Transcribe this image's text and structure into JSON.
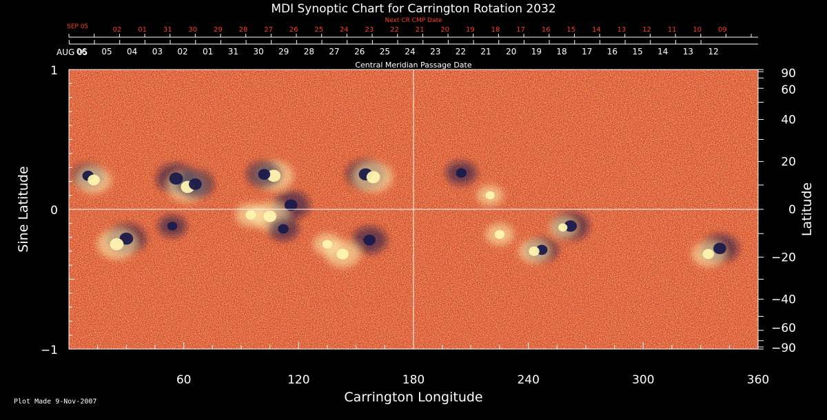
{
  "chart_data": {
    "type": "heatmap",
    "title": "MDI Synoptic Chart for Carrington Rotation 2032",
    "xlabel": "Carrington Longitude",
    "ylabel_left": "Sine Latitude",
    "ylabel_right": "Latitude",
    "xlim": [
      0,
      360
    ],
    "ylim": [
      -1,
      1
    ],
    "x_ticks": [
      60,
      120,
      180,
      240,
      300,
      360
    ],
    "y_ticks_left": [
      {
        "value": 1,
        "label": "1"
      },
      {
        "value": 0,
        "label": "0"
      },
      {
        "value": -1,
        "label": "−1"
      }
    ],
    "y_ticks_right": [
      {
        "deg": 90,
        "label": "90"
      },
      {
        "deg": 60,
        "label": "60"
      },
      {
        "deg": 40,
        "label": "40"
      },
      {
        "deg": 20,
        "label": "20"
      },
      {
        "deg": 0,
        "label": "0"
      },
      {
        "deg": -20,
        "label": "−20"
      },
      {
        "deg": -40,
        "label": "−40"
      },
      {
        "deg": -60,
        "label": "−60"
      },
      {
        "deg": -90,
        "label": "−90"
      }
    ],
    "top_axis_label": "Central Meridian Passage Date",
    "top_axis_start": "AUG 05",
    "top_axis_dates": [
      "06",
      "05",
      "04",
      "03",
      "02",
      "01",
      "31",
      "30",
      "29",
      "28",
      "27",
      "26",
      "25",
      "24",
      "23",
      "22",
      "21",
      "20",
      "19",
      "18",
      "17",
      "16",
      "15",
      "14",
      "13",
      "12"
    ],
    "next_axis_label": "Next CR CMP Date",
    "next_axis_start": "SEP 05",
    "next_axis_dates": [
      "02",
      "01",
      "31",
      "30",
      "29",
      "28",
      "27",
      "26",
      "25",
      "24",
      "23",
      "22",
      "21",
      "20",
      "19",
      "18",
      "17",
      "16",
      "15",
      "14",
      "13",
      "12",
      "11",
      "10",
      "09"
    ],
    "colors": {
      "background": "#000000",
      "field_base": "#e8491a",
      "positive": "#fff3b0",
      "negative": "#1a1a4a",
      "next_axis": "#ff3b1f",
      "gridline": "#ffffff"
    },
    "active_regions": [
      {
        "lon": 10,
        "sinlat": 0.24,
        "polarity": "negative",
        "strength": 0.7
      },
      {
        "lon": 13,
        "sinlat": 0.21,
        "polarity": "positive",
        "strength": 0.8
      },
      {
        "lon": 30,
        "sinlat": -0.21,
        "polarity": "negative",
        "strength": 1.0
      },
      {
        "lon": 25,
        "sinlat": -0.25,
        "polarity": "positive",
        "strength": 1.0
      },
      {
        "lon": 56,
        "sinlat": 0.22,
        "polarity": "negative",
        "strength": 1.0
      },
      {
        "lon": 62,
        "sinlat": 0.16,
        "polarity": "positive",
        "strength": 1.0
      },
      {
        "lon": 66,
        "sinlat": 0.18,
        "polarity": "negative",
        "strength": 0.9
      },
      {
        "lon": 54,
        "sinlat": -0.12,
        "polarity": "negative",
        "strength": 0.5
      },
      {
        "lon": 107,
        "sinlat": 0.24,
        "polarity": "positive",
        "strength": 1.0
      },
      {
        "lon": 102,
        "sinlat": 0.25,
        "polarity": "negative",
        "strength": 0.8
      },
      {
        "lon": 116,
        "sinlat": 0.03,
        "polarity": "negative",
        "strength": 0.9
      },
      {
        "lon": 105,
        "sinlat": -0.05,
        "polarity": "positive",
        "strength": 0.9
      },
      {
        "lon": 95,
        "sinlat": -0.04,
        "polarity": "positive",
        "strength": 0.6
      },
      {
        "lon": 112,
        "sinlat": -0.14,
        "polarity": "negative",
        "strength": 0.6
      },
      {
        "lon": 155,
        "sinlat": 0.25,
        "polarity": "negative",
        "strength": 1.0
      },
      {
        "lon": 159,
        "sinlat": 0.23,
        "polarity": "positive",
        "strength": 1.0
      },
      {
        "lon": 157,
        "sinlat": -0.22,
        "polarity": "negative",
        "strength": 0.8
      },
      {
        "lon": 143,
        "sinlat": -0.32,
        "polarity": "positive",
        "strength": 0.8
      },
      {
        "lon": 135,
        "sinlat": -0.25,
        "polarity": "positive",
        "strength": 0.5
      },
      {
        "lon": 205,
        "sinlat": 0.26,
        "polarity": "negative",
        "strength": 0.6
      },
      {
        "lon": 220,
        "sinlat": 0.1,
        "polarity": "positive",
        "strength": 0.4
      },
      {
        "lon": 225,
        "sinlat": -0.18,
        "polarity": "positive",
        "strength": 0.5
      },
      {
        "lon": 247,
        "sinlat": -0.29,
        "polarity": "negative",
        "strength": 0.7
      },
      {
        "lon": 243,
        "sinlat": -0.3,
        "polarity": "positive",
        "strength": 0.6
      },
      {
        "lon": 262,
        "sinlat": -0.12,
        "polarity": "negative",
        "strength": 0.9
      },
      {
        "lon": 258,
        "sinlat": -0.13,
        "polarity": "positive",
        "strength": 0.4
      },
      {
        "lon": 340,
        "sinlat": -0.28,
        "polarity": "negative",
        "strength": 0.9
      },
      {
        "lon": 334,
        "sinlat": -0.32,
        "polarity": "positive",
        "strength": 0.7
      }
    ]
  },
  "footer": {
    "plot_made": "Plot Made  9-Nov-2007"
  }
}
